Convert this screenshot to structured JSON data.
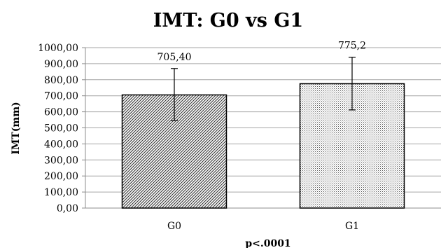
{
  "chart_data": {
    "type": "bar",
    "title": "IMT: G0 vs G1",
    "xlabel": "p<.0001",
    "ylabel": "IMT(mm)",
    "categories": [
      "G0",
      "G1"
    ],
    "values": [
      705.4,
      775.2
    ],
    "data_labels": [
      "705,40",
      "775,2"
    ],
    "error_bars": [
      {
        "low": 545,
        "high": 870
      },
      {
        "low": 612,
        "high": 940
      }
    ],
    "ylim": [
      0,
      1000
    ],
    "y_ticks": [
      {
        "value": 0,
        "label": "0,00"
      },
      {
        "value": 100,
        "label": "100,00"
      },
      {
        "value": 200,
        "label": "200,00"
      },
      {
        "value": 300,
        "label": "300,00"
      },
      {
        "value": 400,
        "label": "400,00"
      },
      {
        "value": 500,
        "label": "500,00"
      },
      {
        "value": 600,
        "label": "600,00"
      },
      {
        "value": 700,
        "label": "700,00"
      },
      {
        "value": 800,
        "label": "800,00"
      },
      {
        "value": 900,
        "label": "900,00"
      },
      {
        "value": 1000,
        "label": "1000,00"
      }
    ],
    "grid": true,
    "legend": "none",
    "bar_patterns": [
      "diagonal-hatch",
      "dotted-stipple"
    ],
    "colors": {
      "bar_stroke": "#000000",
      "grid": "#a6a6a6",
      "background": "#ffffff"
    }
  }
}
